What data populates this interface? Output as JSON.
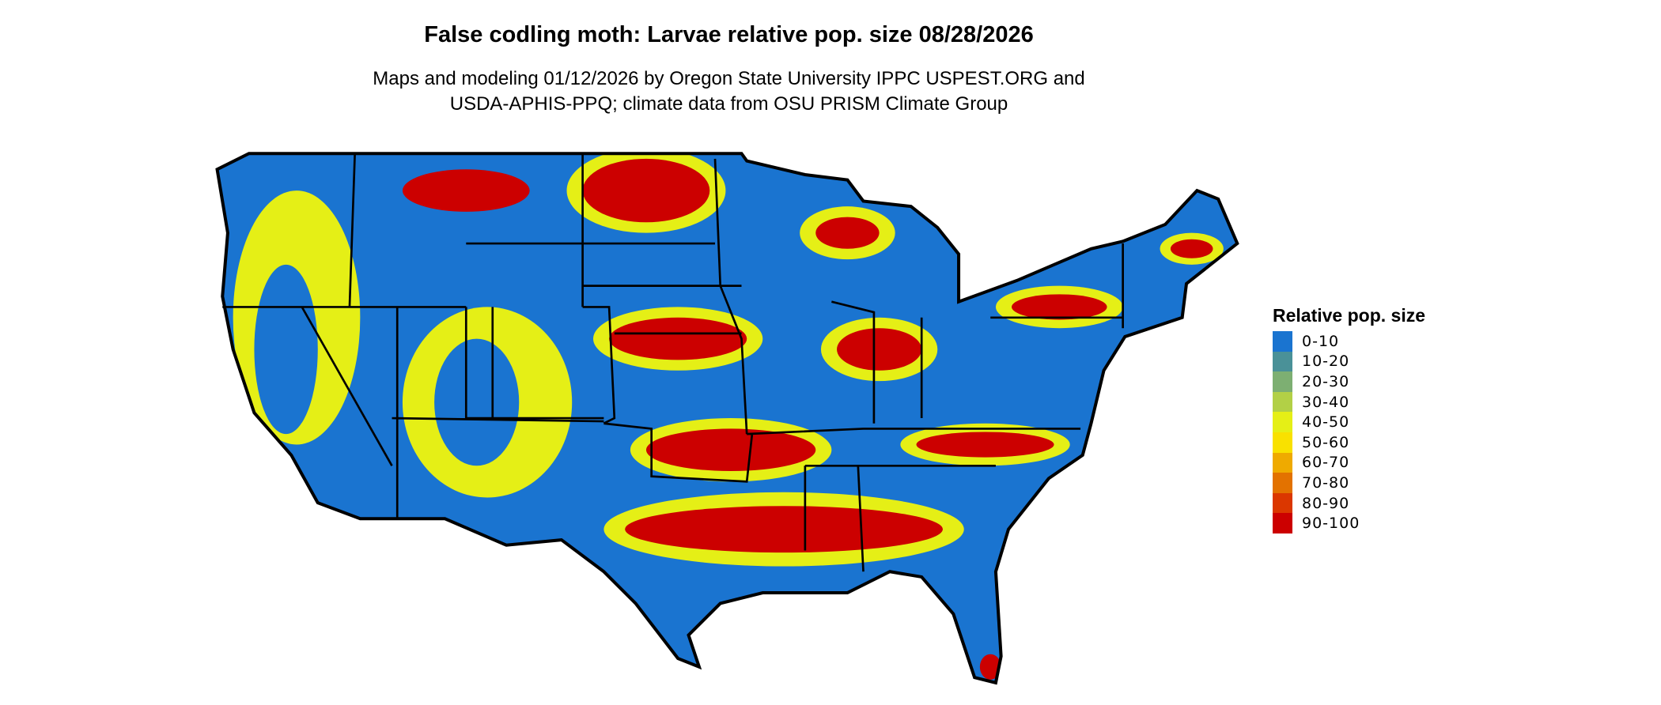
{
  "title": "False codling moth: Larvae relative pop. size 08/28/2026",
  "subtitle_line1": "Maps and modeling 01/12/2026 by Oregon State University IPPC USPEST.ORG and",
  "subtitle_line2": "USDA-APHIS-PPQ; climate data from OSU PRISM Climate Group",
  "legend": {
    "title": "Relative pop. size",
    "items": [
      {
        "label": "0-10",
        "color": "#1a74d0"
      },
      {
        "label": "10-20",
        "color": "#4a9198"
      },
      {
        "label": "20-30",
        "color": "#7daf72"
      },
      {
        "label": "30-40",
        "color": "#b2d046"
      },
      {
        "label": "40-50",
        "color": "#e5ef16"
      },
      {
        "label": "50-60",
        "color": "#f9e100"
      },
      {
        "label": "60-70",
        "color": "#efaa00"
      },
      {
        "label": "70-80",
        "color": "#e37200"
      },
      {
        "label": "80-90",
        "color": "#db3700"
      },
      {
        "label": "90-100",
        "color": "#cc0000"
      }
    ]
  }
}
